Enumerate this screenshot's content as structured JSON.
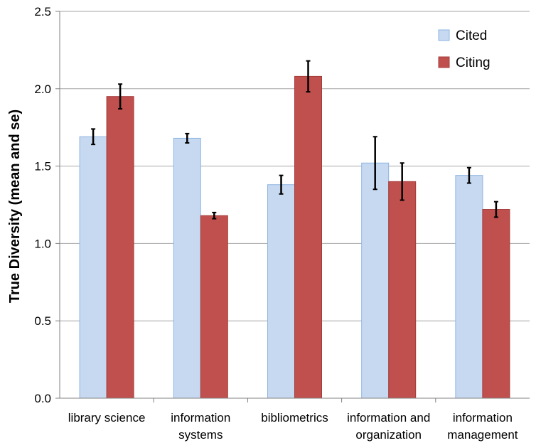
{
  "chart_data": {
    "type": "bar",
    "categories": [
      [
        "library science"
      ],
      [
        "information",
        "systems"
      ],
      [
        "bibliometrics"
      ],
      [
        "information and",
        "organization"
      ],
      [
        "information",
        "management"
      ]
    ],
    "series": [
      {
        "name": "Cited",
        "color": "#c6d9f1",
        "edge": "#8eb4e3",
        "values": [
          1.69,
          1.68,
          1.38,
          1.52,
          1.44
        ],
        "se": [
          0.05,
          0.03,
          0.06,
          0.17,
          0.05
        ]
      },
      {
        "name": "Citing",
        "color": "#c0504d",
        "edge": "#a43c39",
        "values": [
          1.95,
          1.18,
          2.08,
          1.4,
          1.22
        ],
        "se": [
          0.08,
          0.02,
          0.1,
          0.12,
          0.05
        ]
      }
    ],
    "ylabel": "True Diversity (mean and se)",
    "ylim": [
      0,
      2.5
    ],
    "yticks": [
      "0.0",
      "0.5",
      "1.0",
      "1.5",
      "2.0",
      "2.5"
    ],
    "grid": true,
    "legend": "top-right"
  }
}
